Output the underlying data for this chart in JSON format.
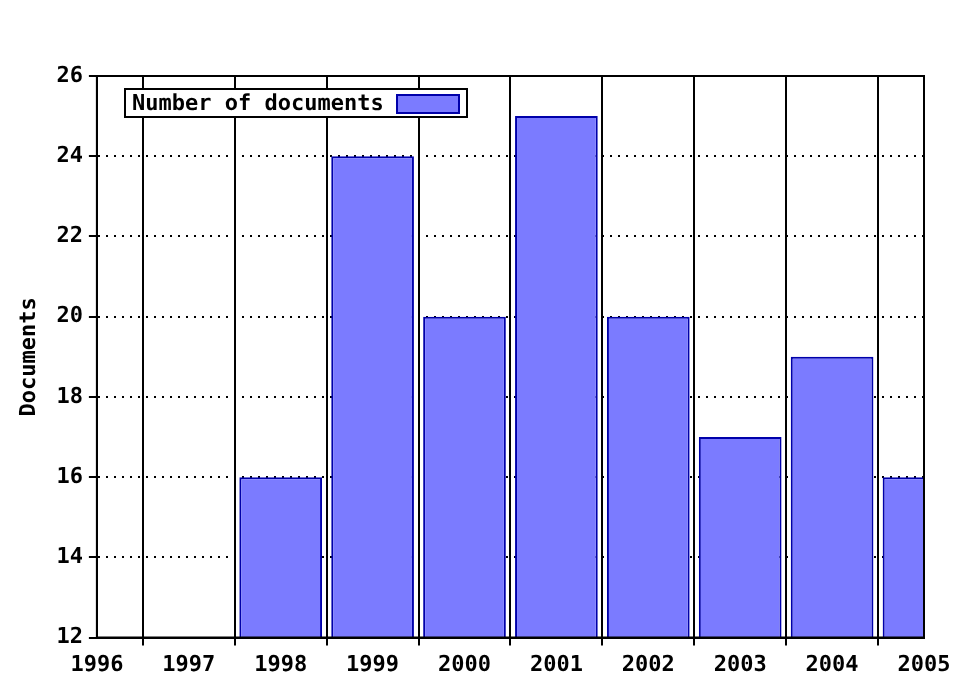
{
  "chart_data": {
    "type": "bar",
    "ylabel": "Documents",
    "x": [
      1998,
      1999,
      2000,
      2001,
      2002,
      2003,
      2004,
      2005
    ],
    "series": [
      {
        "name": "Number of documents",
        "color": "#7b7bff",
        "values": [
          16,
          24,
          20,
          25,
          20,
          17,
          19,
          16
        ]
      }
    ],
    "xlim": [
      1996,
      2005
    ],
    "xticks": [
      1996,
      1997,
      1998,
      1999,
      2000,
      2001,
      2002,
      2003,
      2004,
      2005
    ],
    "ylim": [
      12,
      26
    ],
    "yticks": [
      12,
      14,
      16,
      18,
      20,
      22,
      24,
      26
    ],
    "grid": true,
    "legend": "top left"
  }
}
